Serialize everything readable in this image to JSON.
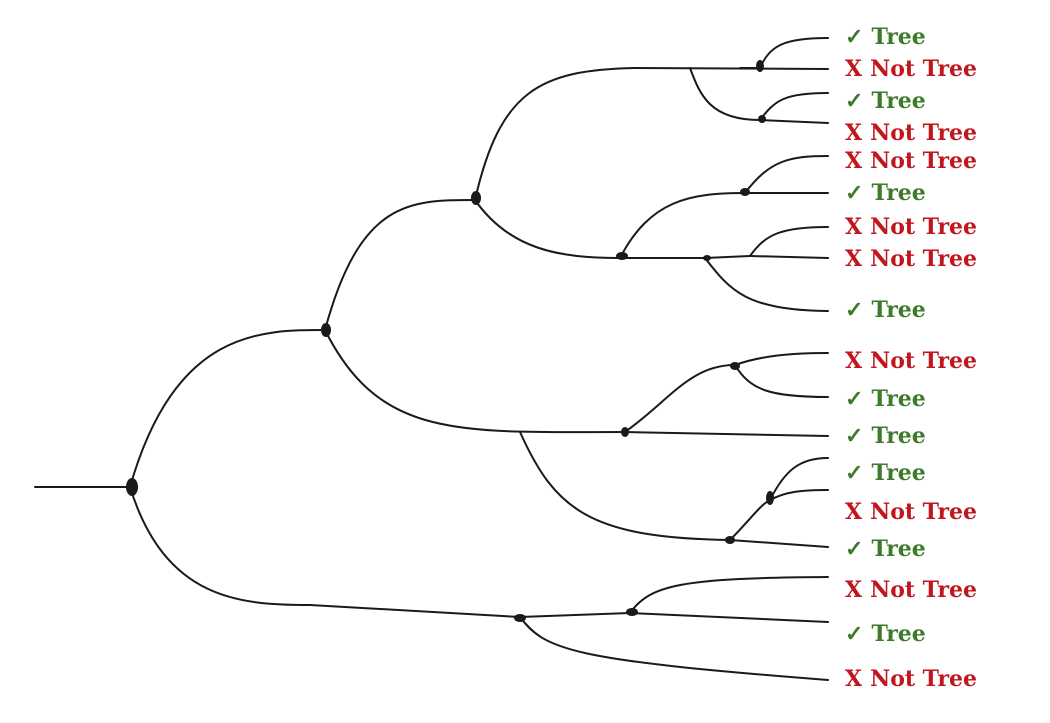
{
  "colors": {
    "tree": "#3d7a2a",
    "not_tree": "#c0161e",
    "branch": "#1a1a1a"
  },
  "tips": [
    {
      "id": "t1",
      "symbol": "✓",
      "text": "Tree",
      "is_tree": true
    },
    {
      "id": "t2",
      "symbol": "X",
      "text": "Not Tree",
      "is_tree": false
    },
    {
      "id": "t3",
      "symbol": "✓",
      "text": "Tree",
      "is_tree": true
    },
    {
      "id": "t4",
      "symbol": "X",
      "text": "Not Tree",
      "is_tree": false
    },
    {
      "id": "t5",
      "symbol": "X",
      "text": "Not Tree",
      "is_tree": false
    },
    {
      "id": "t6",
      "symbol": "✓",
      "text": "Tree",
      "is_tree": true
    },
    {
      "id": "t7",
      "symbol": "X",
      "text": "Not Tree",
      "is_tree": false
    },
    {
      "id": "t8",
      "symbol": "X",
      "text": "Not Tree",
      "is_tree": false
    },
    {
      "id": "t9",
      "symbol": "✓",
      "text": "Tree",
      "is_tree": true
    },
    {
      "id": "t10",
      "symbol": "X",
      "text": "Not Tree",
      "is_tree": false
    },
    {
      "id": "t11",
      "symbol": "✓",
      "text": "Tree",
      "is_tree": true
    },
    {
      "id": "t12",
      "symbol": "✓",
      "text": "Tree",
      "is_tree": true
    },
    {
      "id": "t13",
      "symbol": "✓",
      "text": "Tree",
      "is_tree": true
    },
    {
      "id": "t14",
      "symbol": "X",
      "text": "Not Tree",
      "is_tree": false
    },
    {
      "id": "t15",
      "symbol": "✓",
      "text": "Tree",
      "is_tree": true
    },
    {
      "id": "t16",
      "symbol": "X",
      "text": "Not Tree",
      "is_tree": false
    },
    {
      "id": "t17",
      "symbol": "✓",
      "text": "Tree",
      "is_tree": true
    },
    {
      "id": "t18",
      "symbol": "X",
      "text": "Not Tree",
      "is_tree": false
    }
  ]
}
